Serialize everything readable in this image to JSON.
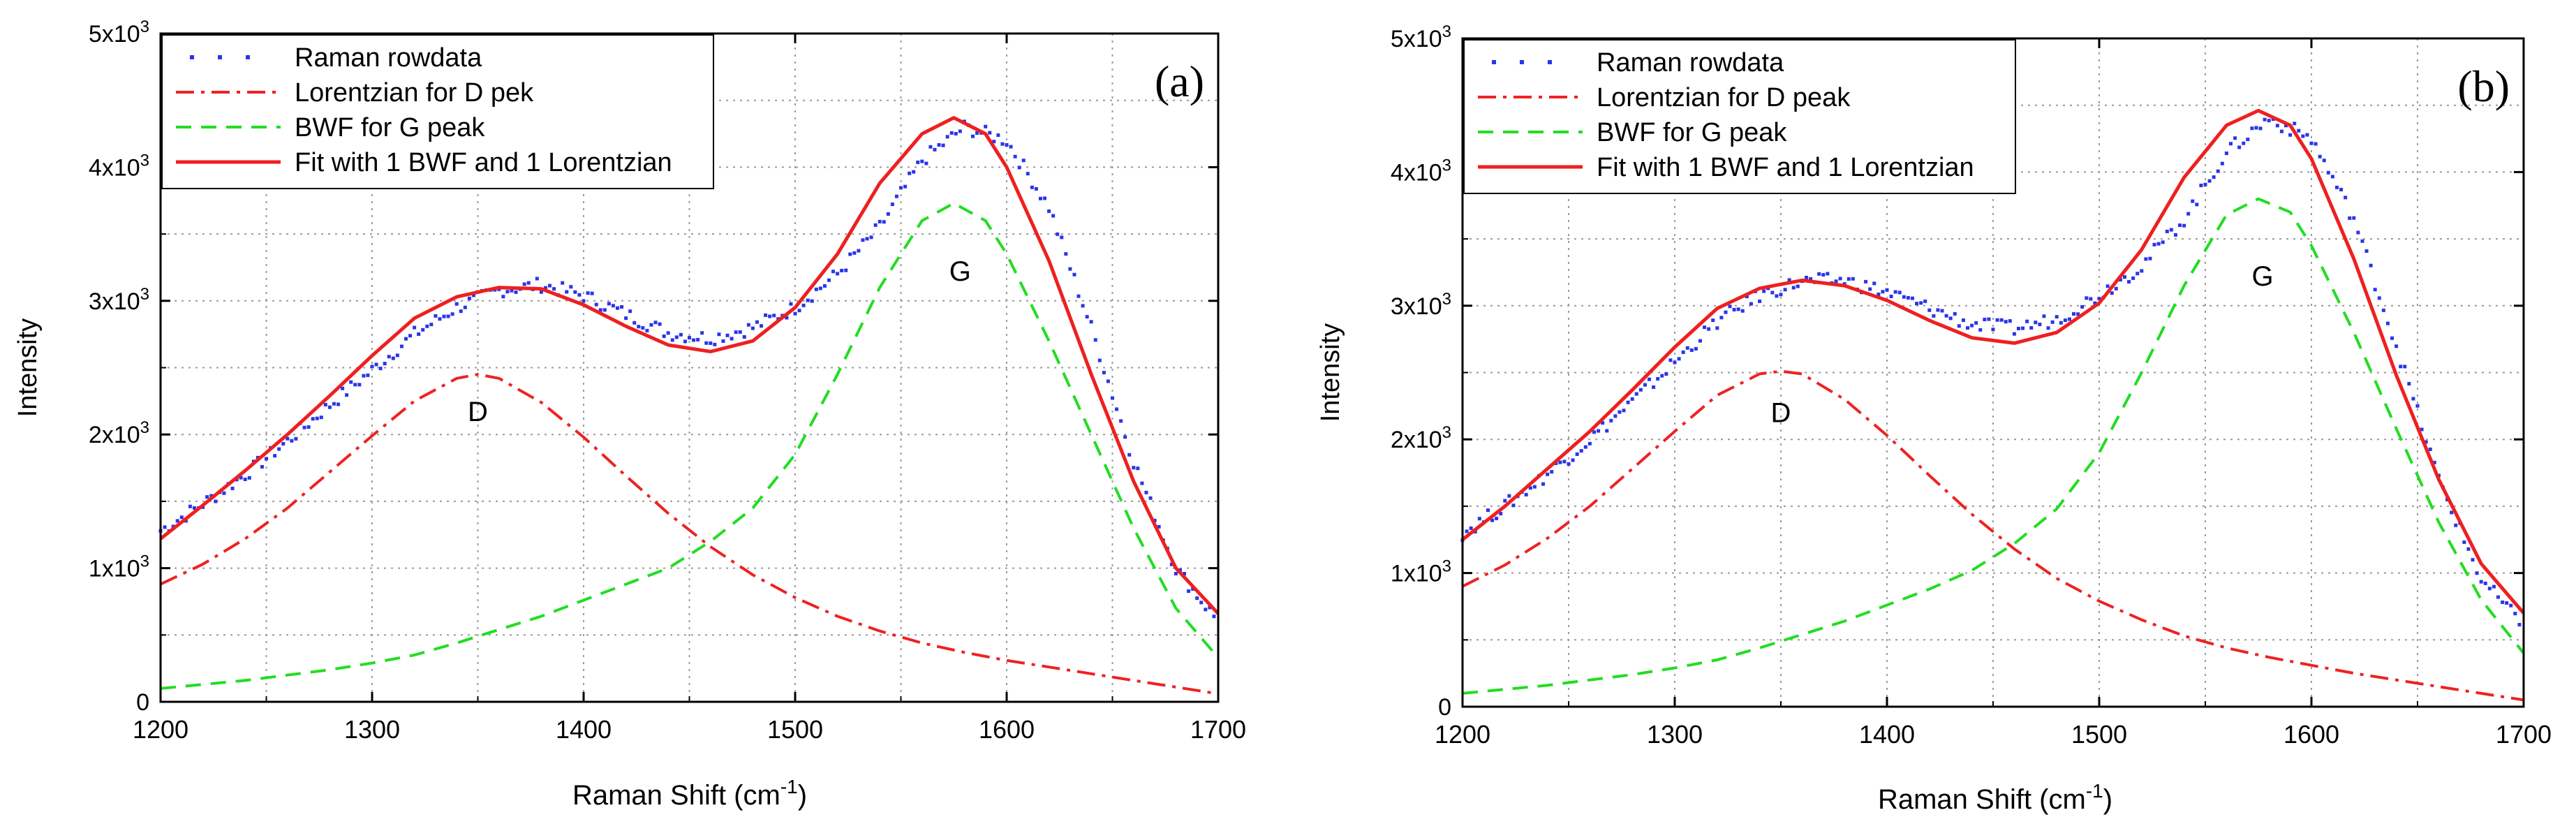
{
  "chart_data": [
    {
      "type": "line",
      "panel_label": "(a)",
      "xlabel": "Raman Shift (cm",
      "xlabel_sup": "-1",
      "xlabel_close": ")",
      "ylabel": "Intensity",
      "xlim": [
        1200,
        1700
      ],
      "ylim": [
        0,
        5000
      ],
      "xticks": [
        1200,
        1300,
        1400,
        1500,
        1600,
        1700
      ],
      "xtick_labels": [
        "1200",
        "1300",
        "1400",
        "1500",
        "1600",
        "1700"
      ],
      "yticks": [
        0,
        1000,
        2000,
        3000,
        4000,
        5000
      ],
      "ytick_labels": [
        {
          "base": "0",
          "exp": ""
        },
        {
          "base": "1x10",
          "exp": "3"
        },
        {
          "base": "2x10",
          "exp": "3"
        },
        {
          "base": "3x10",
          "exp": "3"
        },
        {
          "base": "4x10",
          "exp": "3"
        },
        {
          "base": "5x10",
          "exp": "3"
        }
      ],
      "grid": true,
      "legend_position": "top-left",
      "annotations": [
        {
          "text": "D",
          "x": 1350,
          "y": 2100
        },
        {
          "text": "G",
          "x": 1578,
          "y": 3150
        }
      ],
      "series": [
        {
          "name": "Raman rowdata",
          "style": "points",
          "color": "#2a35e8",
          "x": [
            1200,
            1220,
            1240,
            1260,
            1280,
            1300,
            1320,
            1340,
            1360,
            1380,
            1400,
            1420,
            1440,
            1460,
            1480,
            1500,
            1520,
            1540,
            1560,
            1580,
            1600,
            1620,
            1640,
            1660,
            1680,
            1700
          ],
          "y": [
            1280,
            1480,
            1700,
            1950,
            2220,
            2480,
            2750,
            2950,
            3080,
            3120,
            3040,
            2900,
            2760,
            2720,
            2800,
            2950,
            3200,
            3550,
            4050,
            4300,
            4200,
            3700,
            2800,
            1800,
            1000,
            600
          ]
        },
        {
          "name": "Lorentzian for D pek",
          "style": "dashdot",
          "color": "#ee2222",
          "x": [
            1200,
            1220,
            1240,
            1260,
            1280,
            1300,
            1320,
            1340,
            1350,
            1360,
            1380,
            1400,
            1420,
            1440,
            1460,
            1480,
            1500,
            1520,
            1540,
            1560,
            1580,
            1600,
            1620,
            1640,
            1660,
            1680,
            1700
          ],
          "y": [
            880,
            1030,
            1220,
            1450,
            1720,
            1990,
            2250,
            2420,
            2450,
            2420,
            2240,
            1980,
            1690,
            1410,
            1160,
            950,
            780,
            640,
            530,
            440,
            370,
            310,
            260,
            210,
            160,
            110,
            60
          ]
        },
        {
          "name": "BWF for G peak",
          "style": "dashed",
          "color": "#22dd22",
          "x": [
            1200,
            1220,
            1240,
            1260,
            1280,
            1300,
            1320,
            1340,
            1360,
            1380,
            1400,
            1420,
            1440,
            1460,
            1480,
            1500,
            1520,
            1540,
            1560,
            1575,
            1590,
            1600,
            1620,
            1640,
            1660,
            1680,
            1700
          ],
          "y": [
            100,
            130,
            160,
            200,
            240,
            290,
            350,
            440,
            540,
            640,
            760,
            880,
            1000,
            1200,
            1450,
            1850,
            2450,
            3100,
            3600,
            3730,
            3600,
            3350,
            2700,
            2000,
            1300,
            700,
            330
          ]
        },
        {
          "name": "Fit with 1 BWF and 1 Lorentzian",
          "style": "solid",
          "color": "#ee2020",
          "x": [
            1200,
            1220,
            1240,
            1260,
            1280,
            1300,
            1320,
            1340,
            1360,
            1380,
            1400,
            1420,
            1440,
            1460,
            1480,
            1500,
            1520,
            1540,
            1560,
            1575,
            1590,
            1600,
            1620,
            1640,
            1660,
            1680,
            1700
          ],
          "y": [
            1220,
            1470,
            1730,
            2000,
            2290,
            2590,
            2870,
            3030,
            3100,
            3090,
            2970,
            2810,
            2670,
            2620,
            2700,
            2950,
            3350,
            3880,
            4250,
            4370,
            4250,
            4000,
            3300,
            2450,
            1650,
            1000,
            660
          ]
        }
      ]
    },
    {
      "type": "line",
      "panel_label": "(b)",
      "xlabel": "Raman Shift (cm",
      "xlabel_sup": "-1",
      "xlabel_close": ")",
      "ylabel": "Intensity",
      "xlim": [
        1200,
        1700
      ],
      "ylim": [
        0,
        5000
      ],
      "xticks": [
        1200,
        1300,
        1400,
        1500,
        1600,
        1700
      ],
      "xtick_labels": [
        "1200",
        "1300",
        "1400",
        "1500",
        "1600",
        "1700"
      ],
      "yticks": [
        0,
        1000,
        2000,
        3000,
        4000,
        5000
      ],
      "ytick_labels": [
        {
          "base": "0",
          "exp": ""
        },
        {
          "base": "1x10",
          "exp": "3"
        },
        {
          "base": "2x10",
          "exp": "3"
        },
        {
          "base": "3x10",
          "exp": "3"
        },
        {
          "base": "4x10",
          "exp": "3"
        },
        {
          "base": "5x10",
          "exp": "3"
        }
      ],
      "grid": true,
      "legend_position": "top-left",
      "annotations": [
        {
          "text": "D",
          "x": 1350,
          "y": 2130
        },
        {
          "text": "G",
          "x": 1577,
          "y": 3150
        }
      ],
      "series": [
        {
          "name": "Raman rowdata",
          "style": "points",
          "color": "#2a35e8",
          "x": [
            1200,
            1220,
            1240,
            1260,
            1280,
            1300,
            1320,
            1340,
            1360,
            1380,
            1400,
            1420,
            1440,
            1460,
            1480,
            1500,
            1520,
            1540,
            1560,
            1580,
            1600,
            1620,
            1640,
            1660,
            1680,
            1700
          ],
          "y": [
            1300,
            1500,
            1740,
            2000,
            2280,
            2580,
            2880,
            3080,
            3180,
            3190,
            3100,
            2980,
            2860,
            2830,
            2900,
            3080,
            3300,
            3650,
            4150,
            4400,
            4250,
            3650,
            2700,
            1700,
            950,
            600
          ]
        },
        {
          "name": "Lorentzian for D peak",
          "style": "dashdot",
          "color": "#ee2222",
          "x": [
            1200,
            1220,
            1240,
            1260,
            1280,
            1300,
            1320,
            1340,
            1350,
            1360,
            1380,
            1400,
            1420,
            1440,
            1460,
            1480,
            1500,
            1520,
            1540,
            1560,
            1580,
            1600,
            1620,
            1640,
            1660,
            1680,
            1700
          ],
          "y": [
            900,
            1060,
            1260,
            1500,
            1780,
            2060,
            2330,
            2490,
            2510,
            2490,
            2300,
            2030,
            1730,
            1440,
            1180,
            960,
            790,
            650,
            530,
            440,
            370,
            310,
            250,
            200,
            150,
            100,
            50
          ]
        },
        {
          "name": "BWF for G peak",
          "style": "dashed",
          "color": "#22dd22",
          "x": [
            1200,
            1220,
            1240,
            1260,
            1280,
            1300,
            1320,
            1340,
            1360,
            1380,
            1400,
            1420,
            1440,
            1460,
            1480,
            1500,
            1520,
            1540,
            1560,
            1575,
            1590,
            1600,
            1620,
            1640,
            1660,
            1680,
            1700
          ],
          "y": [
            100,
            130,
            160,
            200,
            240,
            290,
            350,
            440,
            540,
            640,
            760,
            880,
            1020,
            1220,
            1480,
            1900,
            2500,
            3150,
            3680,
            3800,
            3700,
            3450,
            2800,
            2080,
            1380,
            800,
            400
          ]
        },
        {
          "name": "Fit with 1 BWF and 1 Lorentzian",
          "style": "solid",
          "color": "#ee2020",
          "x": [
            1200,
            1220,
            1240,
            1260,
            1280,
            1300,
            1320,
            1340,
            1360,
            1380,
            1400,
            1420,
            1440,
            1460,
            1480,
            1500,
            1520,
            1540,
            1560,
            1575,
            1590,
            1600,
            1620,
            1640,
            1660,
            1680,
            1700
          ],
          "y": [
            1250,
            1500,
            1780,
            2060,
            2370,
            2690,
            2980,
            3130,
            3190,
            3150,
            3040,
            2890,
            2760,
            2720,
            2800,
            3020,
            3420,
            3960,
            4350,
            4460,
            4350,
            4100,
            3350,
            2480,
            1700,
            1070,
            700
          ]
        }
      ]
    }
  ]
}
